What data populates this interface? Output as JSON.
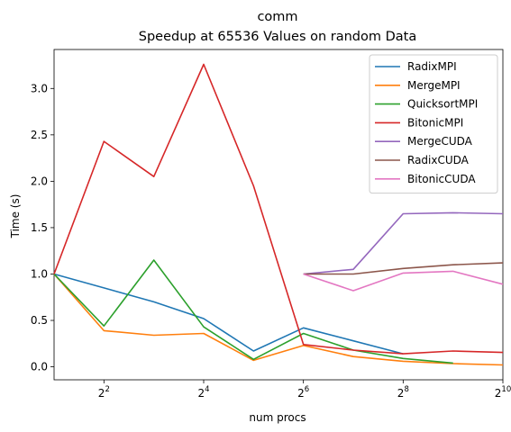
{
  "chart_data": {
    "type": "line",
    "title": "comm",
    "subtitle": "Speedup at 65536 Values on random Data",
    "xlabel": "num procs",
    "ylabel": "Time (s)",
    "x_scale": "log2",
    "xlim": [
      2,
      1024
    ],
    "ylim": [
      -0.14,
      3.42
    ],
    "x_ticks": [
      {
        "value": 4,
        "base": "2",
        "exp": "2"
      },
      {
        "value": 16,
        "base": "2",
        "exp": "4"
      },
      {
        "value": 64,
        "base": "2",
        "exp": "6"
      },
      {
        "value": 256,
        "base": "2",
        "exp": "8"
      },
      {
        "value": 1024,
        "base": "2",
        "exp": "10"
      }
    ],
    "y_ticks": [
      {
        "value": 0.0,
        "label": "0.0"
      },
      {
        "value": 0.5,
        "label": "0.5"
      },
      {
        "value": 1.0,
        "label": "1.0"
      },
      {
        "value": 1.5,
        "label": "1.5"
      },
      {
        "value": 2.0,
        "label": "2.0"
      },
      {
        "value": 2.5,
        "label": "2.5"
      },
      {
        "value": 3.0,
        "label": "3.0"
      }
    ],
    "legend_position": "top-right",
    "grid": false,
    "series": [
      {
        "name": "RadixMPI",
        "color": "#1f77b4",
        "x": [
          2,
          4,
          8,
          16,
          32,
          64,
          128,
          256
        ],
        "values": [
          1.0,
          0.85,
          0.7,
          0.52,
          0.17,
          0.42,
          0.28,
          0.14
        ]
      },
      {
        "name": "MergeMPI",
        "color": "#ff7f0e",
        "x": [
          2,
          4,
          8,
          16,
          32,
          64,
          128,
          256,
          512,
          1024
        ],
        "values": [
          1.0,
          0.39,
          0.34,
          0.36,
          0.07,
          0.23,
          0.11,
          0.06,
          0.035,
          0.02
        ]
      },
      {
        "name": "QuicksortMPI",
        "color": "#2ca02c",
        "x": [
          2,
          4,
          8,
          16,
          32,
          64,
          128,
          256,
          512
        ],
        "values": [
          1.0,
          0.44,
          1.15,
          0.43,
          0.08,
          0.36,
          0.18,
          0.09,
          0.04
        ]
      },
      {
        "name": "BitonicMPI",
        "color": "#d62728",
        "x": [
          2,
          4,
          8,
          16,
          32,
          64,
          128,
          256,
          512,
          1024
        ],
        "values": [
          1.0,
          2.43,
          2.05,
          3.26,
          1.95,
          0.24,
          0.18,
          0.14,
          0.17,
          0.155
        ]
      },
      {
        "name": "MergeCUDA",
        "color": "#9467bd",
        "x": [
          64,
          128,
          256,
          512,
          1024
        ],
        "values": [
          1.0,
          1.05,
          1.65,
          1.66,
          1.65
        ]
      },
      {
        "name": "RadixCUDA",
        "color": "#8c564b",
        "x": [
          64,
          128,
          256,
          512,
          1024
        ],
        "values": [
          1.0,
          1.0,
          1.06,
          1.1,
          1.12
        ]
      },
      {
        "name": "BitonicCUDA",
        "color": "#e377c2",
        "x": [
          64,
          128,
          256,
          512,
          1024
        ],
        "values": [
          1.0,
          0.82,
          1.01,
          1.03,
          0.89
        ]
      }
    ]
  }
}
